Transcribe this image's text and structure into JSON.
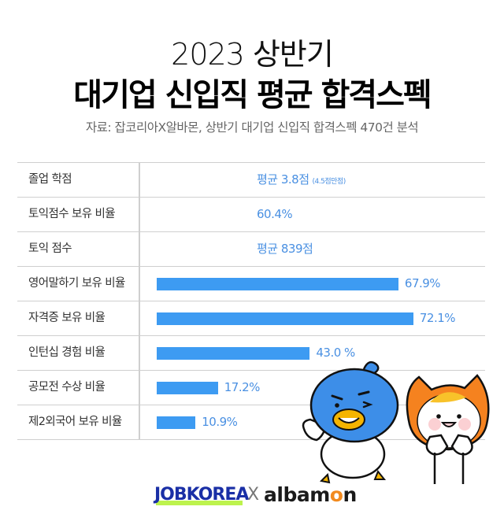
{
  "header": {
    "title_line1": "2023 상반기",
    "title_line2": "대기업 신입직 평균 합격스펙",
    "source": "자료: 잡코리아X알바몬,  상반기 대기업 신입직 합격스펙 470건 분석"
  },
  "table": {
    "rows": [
      {
        "label": "졸업 학점",
        "value": "평균 3.8점",
        "note": "(4.5점만점)"
      },
      {
        "label": "토익점수 보유 비율",
        "value": "60.4%"
      },
      {
        "label": "토익 점수",
        "value": "평균 839점"
      },
      {
        "label": "영어말하기 보유 비율",
        "bar_value": 67.9,
        "bar_label": "67.9%"
      },
      {
        "label": "자격증 보유 비율",
        "bar_value": 72.1,
        "bar_label": "72.1%"
      },
      {
        "label": "인턴십 경험 비율",
        "bar_value": 43.0,
        "bar_label": "43.0   %"
      },
      {
        "label": "공모전 수상 비율",
        "bar_value": 17.2,
        "bar_label": "17.2%"
      },
      {
        "label": "제2외국어 보유 비율",
        "bar_value": 10.9,
        "bar_label": "10.9%"
      }
    ]
  },
  "colors": {
    "bar": "#3d9bf2",
    "value_text": "#4a90e2",
    "jobkorea": "#1a2fa6",
    "albamon_accent": "#f28a1e"
  },
  "footer": {
    "logo_left": "JOBKOREA",
    "logo_separator": "X",
    "logo_right_prefix": "albam",
    "logo_right_accent": "o",
    "logo_right_suffix": "n"
  },
  "chart_data": {
    "type": "bar",
    "orientation": "horizontal",
    "title": "2023 상반기 대기업 신입직 평균 합격스펙",
    "subtitle": "자료: 잡코리아X알바몬,  상반기 대기업 신입직 합격스펙 470건 분석",
    "categories": [
      "영어말하기 보유 비율",
      "자격증 보유 비율",
      "인턴십 경험 비율",
      "공모전 수상 비율",
      "제2외국어 보유 비율"
    ],
    "values": [
      67.9,
      72.1,
      43.0,
      17.2,
      10.9
    ],
    "unit": "%",
    "table_rows": [
      {
        "label": "졸업 학점",
        "value": "평균 3.8점 (4.5점만점)"
      },
      {
        "label": "토익점수 보유 비율",
        "value": "60.4%"
      },
      {
        "label": "토익 점수",
        "value": "평균 839점"
      }
    ],
    "xlabel": "",
    "ylabel": "",
    "grid": false,
    "legend": "none"
  }
}
